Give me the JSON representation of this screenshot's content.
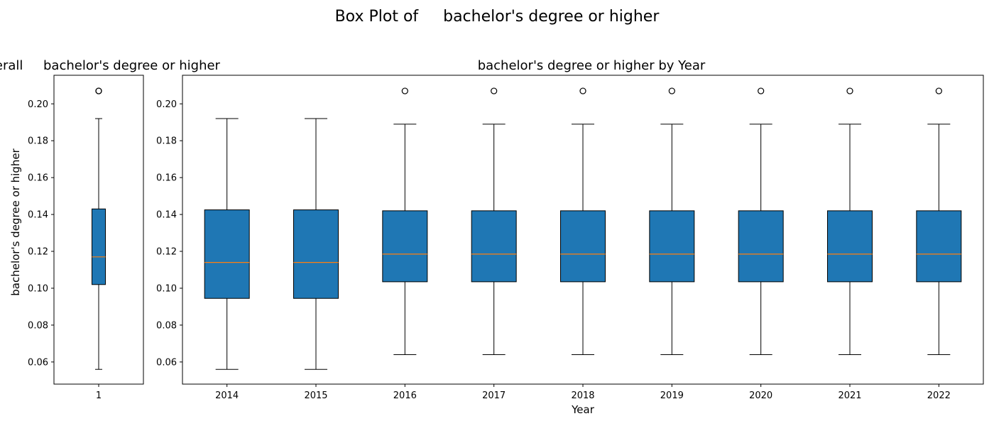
{
  "figure": {
    "title": "Box Plot of     bachelor's degree or higher"
  },
  "chart_data": [
    {
      "type": "box",
      "title": "Overall     bachelor's degree or higher",
      "xlabel": "",
      "ylabel": "bachelor's degree or higher",
      "ylim": [
        0.048,
        0.2155
      ],
      "yticks": [
        "0.06",
        "0.08",
        "0.10",
        "0.12",
        "0.14",
        "0.16",
        "0.18",
        "0.20"
      ],
      "categories": [
        "1"
      ],
      "boxes": [
        {
          "whisker_low": 0.056,
          "q1": 0.102,
          "median": 0.117,
          "q3": 0.143,
          "whisker_high": 0.192,
          "outliers": [
            0.207,
            0.207
          ]
        }
      ],
      "box_color": "#1f77b4",
      "median_color": "#ff7f0e",
      "grid": false
    },
    {
      "type": "box",
      "title": "bachelor's degree or higher by Year",
      "xlabel": "Year",
      "ylabel": "",
      "ylim": [
        0.048,
        0.2155
      ],
      "yticks": [
        "0.06",
        "0.08",
        "0.10",
        "0.12",
        "0.14",
        "0.16",
        "0.18",
        "0.20"
      ],
      "categories": [
        "2014",
        "2015",
        "2016",
        "2017",
        "2018",
        "2019",
        "2020",
        "2021",
        "2022"
      ],
      "boxes": [
        {
          "whisker_low": 0.056,
          "q1": 0.0945,
          "median": 0.114,
          "q3": 0.1425,
          "whisker_high": 0.192,
          "outliers": []
        },
        {
          "whisker_low": 0.056,
          "q1": 0.0945,
          "median": 0.114,
          "q3": 0.1425,
          "whisker_high": 0.192,
          "outliers": []
        },
        {
          "whisker_low": 0.064,
          "q1": 0.1035,
          "median": 0.1185,
          "q3": 0.142,
          "whisker_high": 0.189,
          "outliers": [
            0.207
          ]
        },
        {
          "whisker_low": 0.064,
          "q1": 0.1035,
          "median": 0.1185,
          "q3": 0.142,
          "whisker_high": 0.189,
          "outliers": [
            0.207
          ]
        },
        {
          "whisker_low": 0.064,
          "q1": 0.1035,
          "median": 0.1185,
          "q3": 0.142,
          "whisker_high": 0.189,
          "outliers": [
            0.207
          ]
        },
        {
          "whisker_low": 0.064,
          "q1": 0.1035,
          "median": 0.1185,
          "q3": 0.142,
          "whisker_high": 0.189,
          "outliers": [
            0.207
          ]
        },
        {
          "whisker_low": 0.064,
          "q1": 0.1035,
          "median": 0.1185,
          "q3": 0.142,
          "whisker_high": 0.189,
          "outliers": [
            0.207
          ]
        },
        {
          "whisker_low": 0.064,
          "q1": 0.1035,
          "median": 0.1185,
          "q3": 0.142,
          "whisker_high": 0.189,
          "outliers": [
            0.207
          ]
        },
        {
          "whisker_low": 0.064,
          "q1": 0.1035,
          "median": 0.1185,
          "q3": 0.142,
          "whisker_high": 0.189,
          "outliers": [
            0.207
          ]
        }
      ],
      "box_color": "#1f77b4",
      "median_color": "#ff7f0e",
      "grid": false
    }
  ]
}
